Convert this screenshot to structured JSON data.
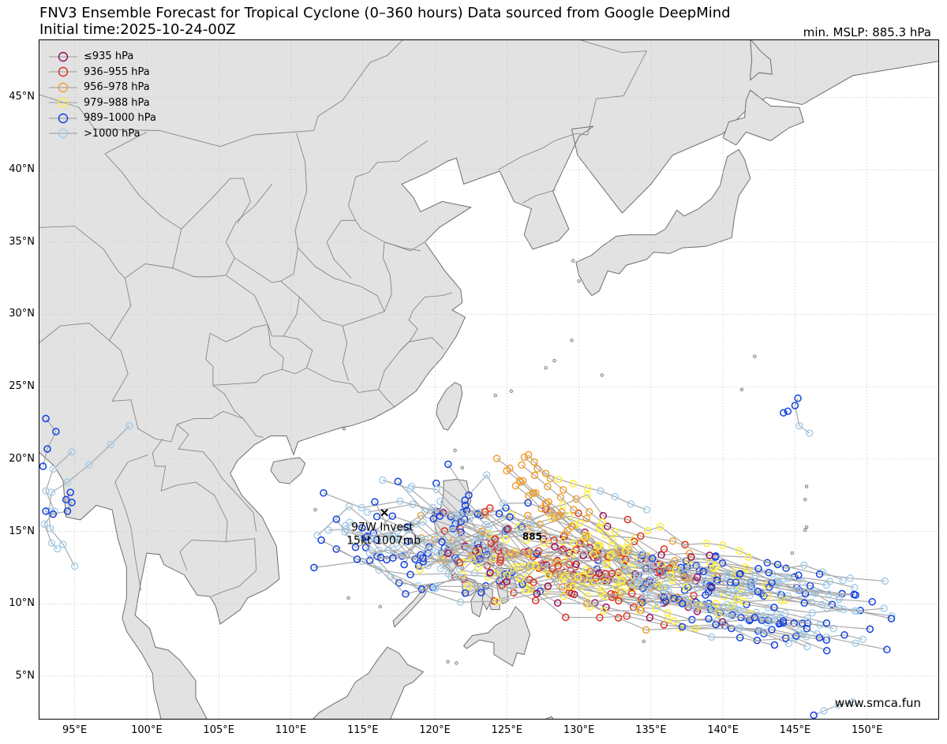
{
  "title": {
    "line1": "FNV3 Ensemble Forecast for Tropical Cyclone (0–360 hours) Data sourced from Google DeepMind",
    "line2": "Initial time:2025-10-24-00Z",
    "min_mslp": "min. MSLP: 885.3 hPa"
  },
  "map": {
    "lon_range": [
      92.5,
      155
    ],
    "lat_range": [
      2,
      49
    ],
    "lat_ticks": [
      "5°N",
      "10°N",
      "15°N",
      "20°N",
      "25°N",
      "30°N",
      "35°N",
      "40°N",
      "45°N"
    ],
    "lon_ticks": [
      "95°E",
      "100°E",
      "105°E",
      "110°E",
      "115°E",
      "120°E",
      "125°E",
      "130°E",
      "135°E",
      "140°E",
      "145°E",
      "150°E"
    ],
    "land_color": "#e2e2e2",
    "coast_color": "#6e6e6e",
    "border_color": "#888888"
  },
  "legend": [
    {
      "label": "≤935 hPa",
      "color": "#9c0a5a"
    },
    {
      "label": "936–955 hPa",
      "color": "#e0301e"
    },
    {
      "label": "956–978 hPa",
      "color": "#f0a030"
    },
    {
      "label": "979–988 hPa",
      "color": "#ffee33"
    },
    {
      "label": "989–1000 hPa",
      "color": "#1040e0"
    },
    {
      "label": ">1000 hPa",
      "color": "#a0cdec"
    }
  ],
  "storm": {
    "name_line1": "97W Invest",
    "name_line2": "15kt 1007mb",
    "lon": 116.5,
    "lat": 16.3
  },
  "min_marker": {
    "label": "885",
    "lon": 126.4,
    "lat": 14.7
  },
  "watermark": "www.smca.fun"
}
